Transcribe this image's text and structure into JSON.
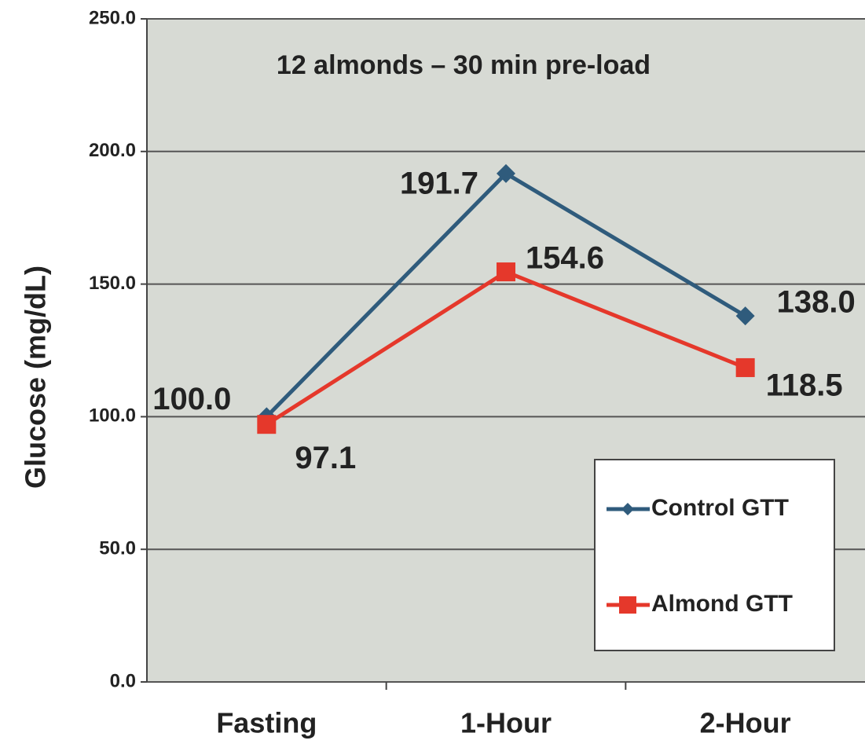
{
  "chart_data": {
    "type": "line",
    "title": "12 almonds – 30 min pre-load",
    "y_label": "Glucose (mg/dL)",
    "categories": [
      "Fasting",
      "1-Hour",
      "2-Hour"
    ],
    "series": [
      {
        "name": "Control GTT",
        "color": "#2f5b7c",
        "marker": "diamond",
        "values": [
          100.0,
          191.7,
          138.0
        ],
        "value_labels": [
          "100.0",
          "191.7",
          "138.0"
        ]
      },
      {
        "name": "Almond GTT",
        "color": "#e5382b",
        "marker": "square",
        "values": [
          97.1,
          154.6,
          118.5
        ],
        "value_labels": [
          "97.1",
          "154.6",
          "118.5"
        ]
      }
    ],
    "ylim": [
      0,
      250
    ],
    "yticks": [
      {
        "value": 0,
        "label": "0.0"
      },
      {
        "value": 50,
        "label": "50.0"
      },
      {
        "value": 100,
        "label": "100.0"
      },
      {
        "value": 150,
        "label": "150.0"
      },
      {
        "value": 200,
        "label": "200.0"
      },
      {
        "value": 250,
        "label": "250.0"
      }
    ],
    "grid": true,
    "legend": "lower right"
  }
}
